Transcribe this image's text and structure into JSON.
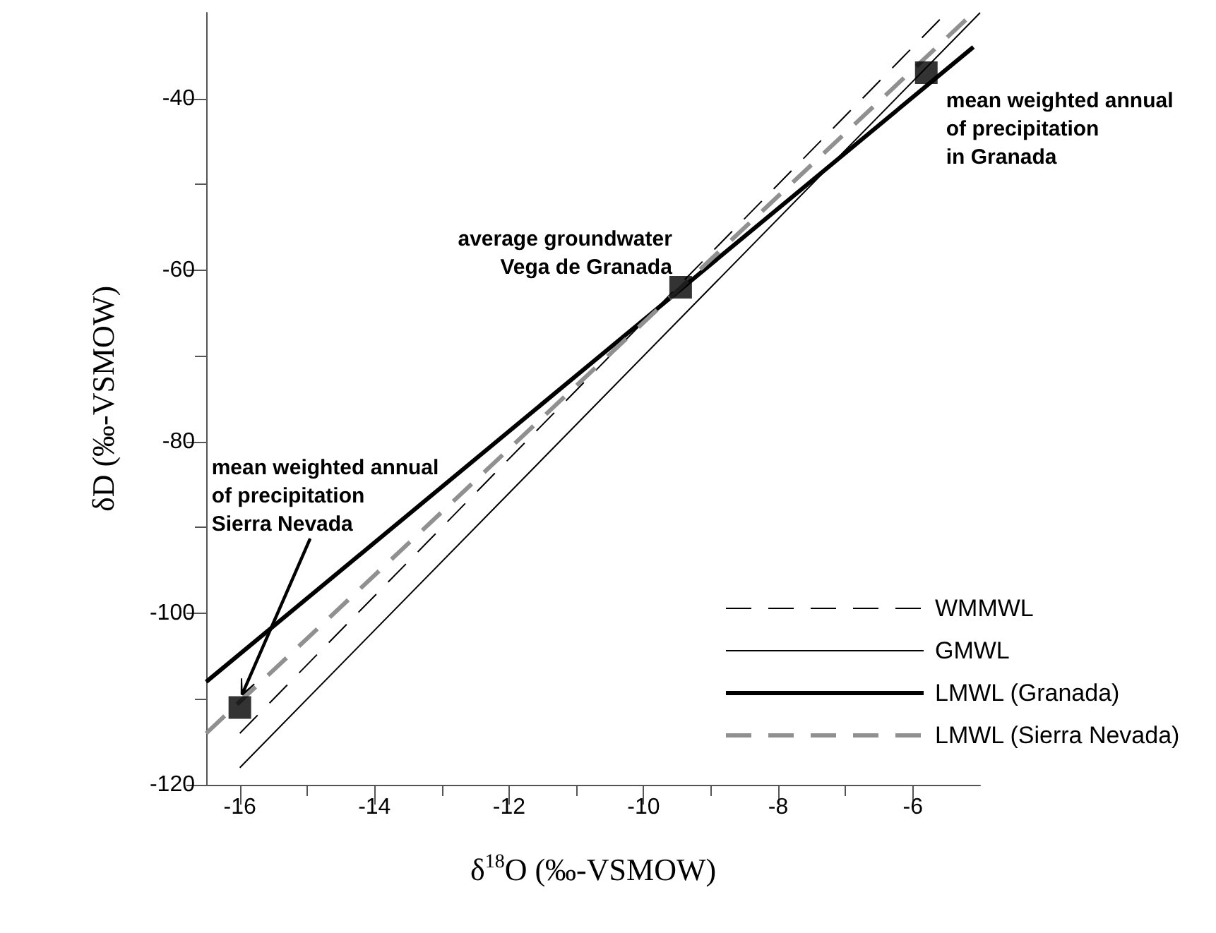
{
  "chart_data": {
    "type": "line",
    "xlabel": "δ$^{18}$O (‰-VSMOW)",
    "ylabel": "δD (‰-VSMOW)",
    "xlim": [
      -16.5,
      -5
    ],
    "xticks": [
      -16,
      -14,
      -12,
      -10,
      -8,
      -6
    ],
    "ylim": [
      -120,
      -30
    ],
    "yticks": [
      -120,
      -100,
      -80,
      -60,
      -40
    ],
    "grid": false,
    "legend": "bottom right",
    "series": [
      {
        "name": "WMMWL",
        "color": "#000000",
        "line_style": "dashed",
        "x": [
          -16,
          -5.5
        ],
        "values": [
          -114,
          -30
        ]
      },
      {
        "name": "GMWL",
        "color": "#000000",
        "line_style": "solid",
        "x": [
          -16,
          -5
        ],
        "values": [
          -118,
          -30
        ]
      },
      {
        "name": "LMWL (Granada)",
        "color": "#000000",
        "line_style": "solid",
        "x": [
          -16.5,
          -5.1
        ],
        "values": [
          -108,
          -34
        ]
      },
      {
        "name": "LMWL (Sierra Nevada)",
        "color": "#909090",
        "line_style": "dashed",
        "x": [
          -16.5,
          -5.1
        ],
        "values": [
          -114,
          -30
        ]
      },
      {
        "type": "scatter",
        "color": "#000000",
        "marker": "square",
        "x": [
          -16,
          -9.45,
          -5.8
        ],
        "values": [
          -111,
          -62,
          -37
        ]
      }
    ],
    "annotations": [
      "mean weighted annual\nof precipitation\nSierra Nevada",
      {
        "text": "average groundwater\nVega de Granada",
        "x": -9.45,
        "y": -62
      },
      {
        "text": "mean weighted annual\nof precipitation\nin Granada",
        "x": -5.8,
        "y": -37
      }
    ]
  }
}
